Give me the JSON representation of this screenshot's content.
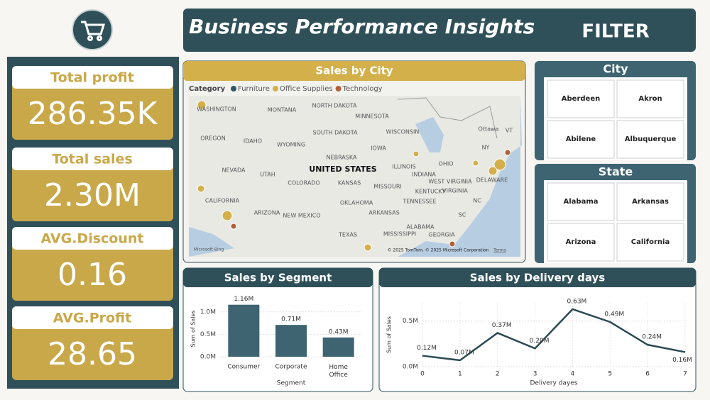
{
  "header": {
    "title": "Business Performance Insights",
    "filter": "FILTER"
  },
  "kpis": [
    {
      "label": "Total profit",
      "value": "286.35K"
    },
    {
      "label": "Total sales",
      "value": "2.30M"
    },
    {
      "label": "AVG.Discount",
      "value": "0.16"
    },
    {
      "label": "AVG.Profit",
      "value": "28.65"
    }
  ],
  "map": {
    "title": "Sales by City",
    "legend_title": "Category",
    "legend": [
      {
        "name": "Furniture",
        "color": "#2f5662"
      },
      {
        "name": "Office Supplies",
        "color": "#d4b04a"
      },
      {
        "name": "Technology",
        "color": "#b0613a"
      }
    ],
    "labels": [
      "WASHINGTON",
      "MONTANA",
      "NORTH DAKOTA",
      "MINNESOTA",
      "OREGON",
      "IDAHO",
      "SOUTH DAKOTA",
      "WISCONSIN",
      "WYOMING",
      "NEBRASKA",
      "IOWA",
      "NEVADA",
      "UTAH",
      "UNITED STATES",
      "ILLINOIS",
      "INDIANA",
      "OHIO",
      "CALIFORNIA",
      "COLORADO",
      "KANSAS",
      "MISSOURI",
      "WEST VIRGINIA",
      "VIRGINIA",
      "KENTUCKY",
      "OKLAHOMA",
      "ARIZONA",
      "NEW MEXICO",
      "TENNESSEE",
      "NC",
      "ARKANSAS",
      "SC",
      "TEXAS",
      "MISSISSIPPI",
      "ALABAMA",
      "GEORGIA",
      "Ottawa",
      "NY",
      "VT",
      "DELAWARE",
      "Microsoft Bing",
      "© 2025 TomTom, © 2025 Microsoft Corporation",
      "Terms"
    ]
  },
  "filters": [
    {
      "title": "City",
      "options": [
        "Aberdeen",
        "Akron",
        "Abilene",
        "Albuquerque"
      ]
    },
    {
      "title": "State",
      "options": [
        "Alabama",
        "Arkansas",
        "Arizona",
        "California"
      ]
    }
  ],
  "chart_data": [
    {
      "type": "bar",
      "title": "Sales by Segment",
      "x_label": "Segment",
      "y_label": "Sum of Sales",
      "categories": [
        "Consumer",
        "Corporate",
        "Home Office"
      ],
      "values": [
        1.16,
        0.71,
        0.43
      ],
      "value_labels": [
        "1.16M",
        "0.71M",
        "0.43M"
      ],
      "color": "#3d6470",
      "ylim": [
        0,
        1.25
      ],
      "yticks": [
        {
          "value": 0,
          "label": "0.0M"
        },
        {
          "value": 0.5,
          "label": "0.5M"
        },
        {
          "value": 1,
          "label": "1.0M"
        }
      ],
      "grid": true
    },
    {
      "type": "line",
      "title": "Sales by Delivery days",
      "x_label": "Delivery dayes",
      "y_label": "Sum of Sales",
      "x": [
        0,
        1,
        2,
        3,
        4,
        5,
        6,
        7
      ],
      "values": [
        0.12,
        0.07,
        0.37,
        0.2,
        0.63,
        0.49,
        0.24,
        0.16
      ],
      "value_labels": [
        "0.12M",
        "0.07M",
        "0.37M",
        "0.20M",
        "0.63M",
        "0.49M",
        "0.24M",
        "0.16M"
      ],
      "color": "#2b4a55",
      "xlim": [
        0,
        7
      ],
      "xticks": [
        0,
        1,
        2,
        3,
        4,
        5,
        6,
        7
      ],
      "ylim": [
        0,
        0.7
      ],
      "yticks": [
        {
          "value": 0,
          "label": "0.0M"
        },
        {
          "value": 0.5,
          "label": "0.5M"
        }
      ],
      "grid": true
    }
  ]
}
